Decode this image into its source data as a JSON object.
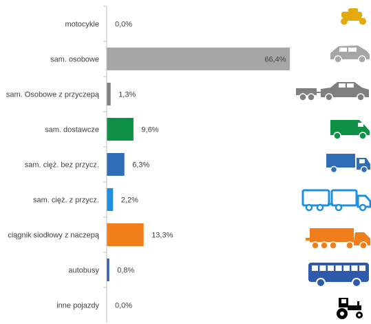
{
  "chart_data": {
    "type": "bar",
    "orientation": "horizontal",
    "title": "",
    "xlabel": "",
    "ylabel": "",
    "xlim": [
      0,
      100
    ],
    "grid": false,
    "legend": "none",
    "categories": [
      "motocykle",
      "sam. osobowe",
      "sam. Osobowe z przyczepą",
      "sam. dostawcze",
      "sam. cięż. bez przycz.",
      "sam. cięż. z przycz.",
      "ciągnik siodłowy z naczepą",
      "autobusy",
      "inne pojazdy"
    ],
    "values": [
      0.0,
      66.4,
      1.3,
      9.6,
      6.3,
      2.2,
      13.3,
      0.8,
      0.0
    ],
    "data_labels": [
      "0,0%",
      "66,4%",
      "1,3%",
      "9,6%",
      "6,3%",
      "2,2%",
      "13,3%",
      "0,8%",
      "0,0%"
    ],
    "colors": [
      "#E3A90D",
      "#A6A6A6",
      "#7F7F7F",
      "#0E9145",
      "#2F6DB5",
      "#1E90E0",
      "#F07E1A",
      "#2E5AAC",
      "#000000"
    ],
    "icons": [
      "motorcycle-icon",
      "car-icon",
      "car-with-trailer-icon",
      "van-icon",
      "truck-icon",
      "truck-with-trailer-icon",
      "tractor-semitrailer-icon",
      "bus-icon",
      "tractor-icon"
    ]
  }
}
